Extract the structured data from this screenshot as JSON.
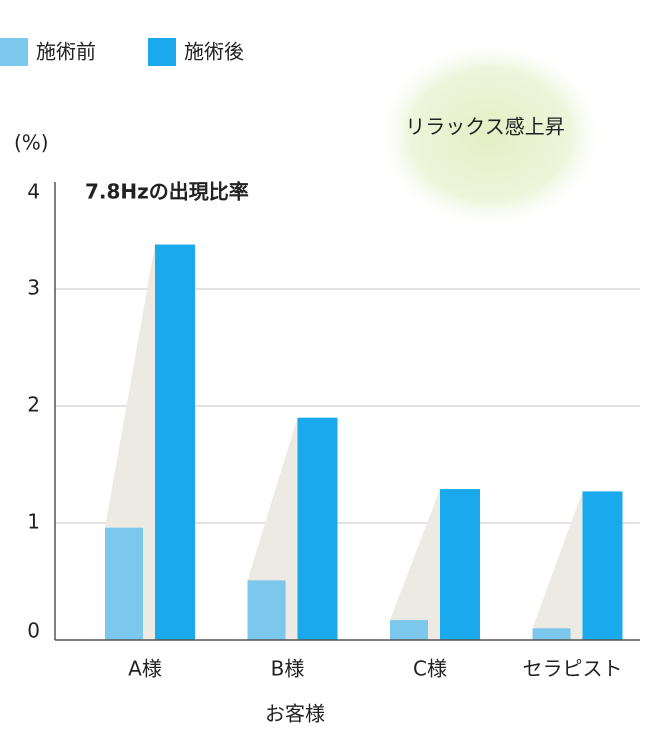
{
  "chart_data": {
    "type": "bar",
    "title": "7.8Hzの出現比率",
    "y_label": "(%)",
    "x_label": "お客様",
    "annotation": "リラックス感上昇",
    "categories": [
      "A様",
      "B様",
      "C様",
      "セラピスト"
    ],
    "series": [
      {
        "name": "施術前",
        "color": "#7cc7ec",
        "values": [
          0.96,
          0.51,
          0.17,
          0.1
        ]
      },
      {
        "name": "施術後",
        "color": "#19a9ec",
        "values": [
          3.38,
          1.9,
          1.29,
          1.27
        ]
      }
    ],
    "ylim": [
      0,
      4
    ],
    "yticks": [
      0,
      1,
      2,
      3,
      4
    ],
    "grid": true
  }
}
